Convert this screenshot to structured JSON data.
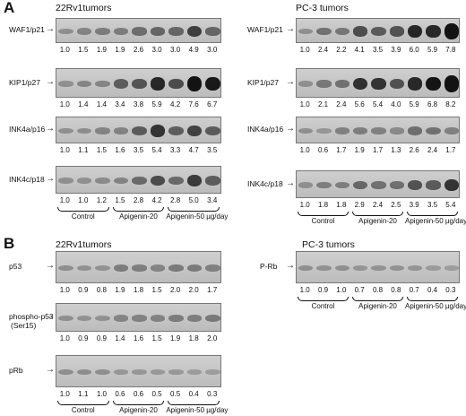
{
  "panelA": {
    "letter": "A",
    "left": {
      "title": "22Rv1tumors",
      "blots": [
        {
          "label": "WAF1/p21",
          "values": [
            "1.0",
            "1.5",
            "1.9",
            "1.9",
            "2.6",
            "3.0",
            "3.0",
            "4.9",
            "3.0"
          ]
        },
        {
          "label": "KIP1/p27",
          "values": [
            "1.0",
            "1.4",
            "1.4",
            "3.4",
            "3.8",
            "5.9",
            "4.2",
            "7.6",
            "6.7"
          ]
        },
        {
          "label": "INK4a/p16",
          "values": [
            "1.0",
            "1.1",
            "1.5",
            "1.6",
            "3.5",
            "5.4",
            "3.3",
            "4.7",
            "3.5"
          ]
        },
        {
          "label": "INK4c/p18",
          "values": [
            "1.0",
            "1.0",
            "1.2",
            "1.5",
            "2.8",
            "4.2",
            "2.8",
            "5.0",
            "3.4"
          ]
        }
      ],
      "groups": [
        "Control",
        "Apigenin-20",
        "Apigenin-50 µg/day"
      ]
    },
    "right": {
      "title": "PC-3 tumors",
      "blots": [
        {
          "label": "WAF1/p21",
          "values": [
            "1.0",
            "2.4",
            "2.2",
            "4.1",
            "3.5",
            "3.9",
            "6.0",
            "5.9",
            "7.8"
          ]
        },
        {
          "label": "KIP1/p27",
          "values": [
            "1.0",
            "2.1",
            "2.4",
            "5.6",
            "5.4",
            "4.0",
            "5.9",
            "6.8",
            "8.2"
          ]
        },
        {
          "label": "INK4a/p16",
          "values": [
            "1.0",
            "0.6",
            "1.7",
            "1.9",
            "1.7",
            "1.3",
            "2.6",
            "2.4",
            "1.7"
          ]
        },
        {
          "label": "INK4c/p18",
          "values": [
            "1.0",
            "1.8",
            "1.8",
            "2.9",
            "2.4",
            "2.5",
            "3.9",
            "3.5",
            "5.4"
          ]
        }
      ],
      "groups": [
        "Control",
        "Apigenin-20",
        "Apigenin-50 µg/day"
      ]
    }
  },
  "panelB": {
    "letter": "B",
    "left": {
      "title": "22Rv1tumors",
      "blots": [
        {
          "label": "p53",
          "values": [
            "1.0",
            "0.9",
            "0.8",
            "1.9",
            "1.8",
            "1.5",
            "2.0",
            "2.0",
            "1.7"
          ]
        },
        {
          "label": "phospho-p53",
          "sublabel": "(Ser15)",
          "values": [
            "1.0",
            "0.9",
            "0.9",
            "1.4",
            "1.6",
            "1.5",
            "1.9",
            "1.8",
            "2.0"
          ]
        },
        {
          "label": "pRb",
          "values": [
            "1.0",
            "1.1",
            "1.0",
            "0.6",
            "0.6",
            "0.5",
            "0.5",
            "0.4",
            "0.3"
          ]
        }
      ],
      "groups": [
        "Control",
        "Apigenin-20",
        "Apigenin-50 µg/day"
      ]
    },
    "right": {
      "title": "PC-3 tumors",
      "blots": [
        {
          "label": "P-Rb",
          "values": [
            "1.0",
            "0.9",
            "1.0",
            "0.7",
            "0.8",
            "0.8",
            "0.7",
            "0.4",
            "0.3"
          ]
        }
      ],
      "groups": [
        "Control",
        "Apigenin-20",
        "Apigenin-50 µg/day"
      ]
    }
  }
}
